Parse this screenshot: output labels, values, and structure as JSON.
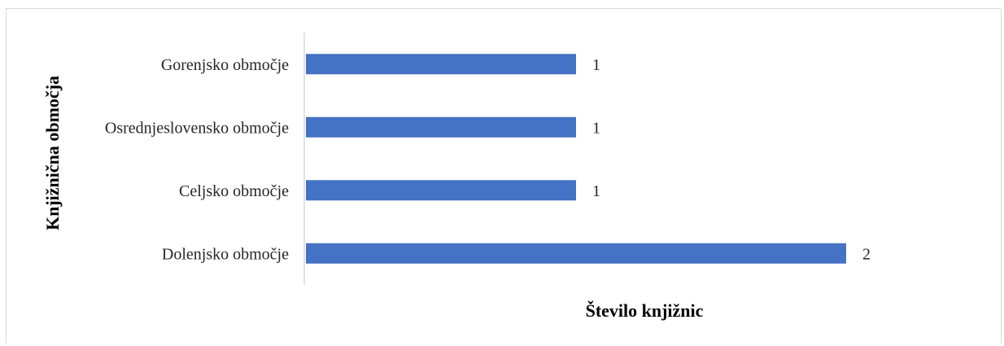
{
  "chart_data": {
    "type": "bar",
    "orientation": "horizontal",
    "categories": [
      "Gorenjsko območje",
      "Osrednjeslovensko območje",
      "Celjsko območje",
      "Dolenjsko območje"
    ],
    "values": [
      1,
      1,
      1,
      2
    ],
    "data_labels": [
      "1",
      "1",
      "1",
      "2"
    ],
    "xlabel": "Število knjižnic",
    "ylabel": "Knjižnična območja",
    "xlim": [
      0,
      2
    ],
    "grid": false,
    "legend": "none",
    "bar_color": "#4472c4",
    "axis_color": "#d9d9d9"
  }
}
